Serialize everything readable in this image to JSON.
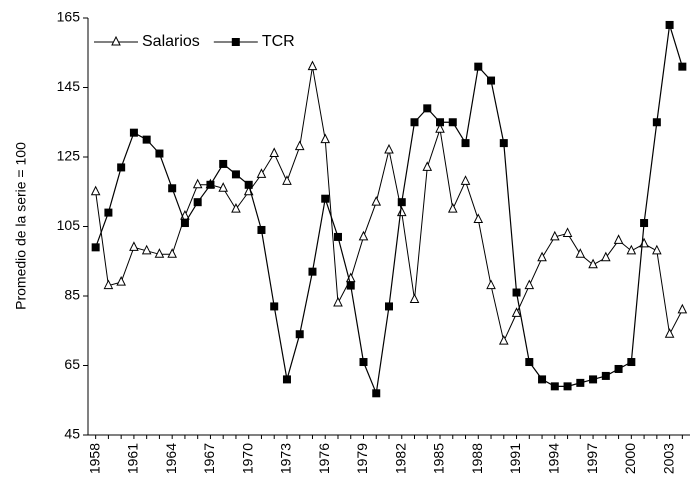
{
  "chart_data": {
    "type": "line",
    "ylabel": "Promedio de la serie = 100",
    "x": [
      1958,
      1959,
      1960,
      1961,
      1962,
      1963,
      1964,
      1965,
      1966,
      1967,
      1968,
      1969,
      1970,
      1971,
      1972,
      1973,
      1974,
      1975,
      1976,
      1977,
      1978,
      1979,
      1980,
      1981,
      1982,
      1983,
      1984,
      1985,
      1986,
      1987,
      1988,
      1989,
      1990,
      1991,
      1992,
      1993,
      1994,
      1995,
      1996,
      1997,
      1998,
      1999,
      2000,
      2001,
      2002,
      2003,
      2004
    ],
    "series": [
      {
        "name": "Salarios",
        "color": "#000000",
        "marker": "triangle",
        "values": [
          115,
          88,
          89,
          99,
          98,
          97,
          97,
          108,
          117,
          117,
          116,
          110,
          115,
          120,
          126,
          118,
          128,
          151,
          130,
          83,
          90,
          102,
          112,
          127,
          109,
          84,
          122,
          133,
          110,
          118,
          107,
          88,
          72,
          80,
          88,
          96,
          102,
          103,
          97,
          94,
          96,
          101,
          98,
          100,
          98,
          74,
          81
        ]
      },
      {
        "name": "TCR",
        "color": "#000000",
        "marker": "square",
        "values": [
          99,
          109,
          122,
          132,
          130,
          126,
          116,
          106,
          112,
          117,
          123,
          120,
          117,
          104,
          82,
          61,
          74,
          92,
          113,
          102,
          88,
          66,
          57,
          82,
          112,
          135,
          139,
          135,
          135,
          129,
          151,
          147,
          129,
          86,
          66,
          61,
          59,
          59,
          60,
          61,
          62,
          64,
          66,
          106,
          135,
          163,
          151
        ]
      }
    ],
    "xlim": [
      1957.4,
      2004.6
    ],
    "xticks": [
      1958,
      1961,
      1964,
      1967,
      1970,
      1973,
      1976,
      1979,
      1982,
      1985,
      1988,
      1991,
      1994,
      1997,
      2000,
      2003
    ],
    "ylim": [
      45,
      165
    ],
    "yticks": [
      45,
      65,
      85,
      105,
      125,
      145,
      165
    ],
    "legend": "top-left"
  }
}
